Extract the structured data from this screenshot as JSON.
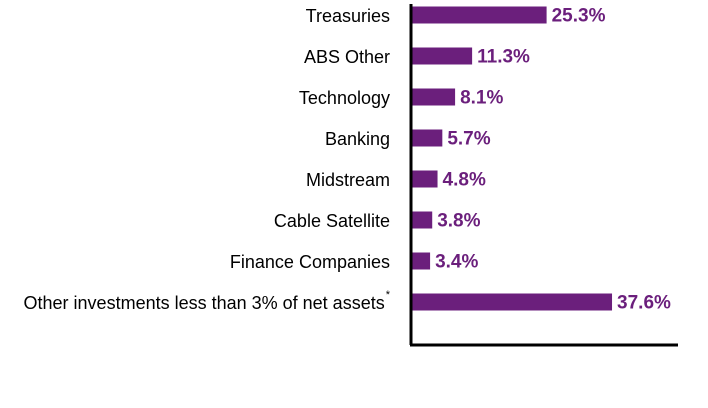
{
  "chart_data": {
    "type": "bar",
    "orientation": "horizontal",
    "categories": [
      "Treasuries",
      "ABS Other",
      "Technology",
      "Banking",
      "Midstream",
      "Cable Satellite",
      "Finance Companies",
      "Other investments less than 3% of net assets"
    ],
    "footnote_markers": [
      "",
      "",
      "",
      "",
      "",
      "",
      "",
      "*"
    ],
    "values": [
      25.3,
      11.3,
      8.1,
      5.7,
      4.8,
      3.8,
      3.4,
      37.6
    ],
    "value_labels": [
      "25.3%",
      "11.3%",
      "8.1%",
      "5.7%",
      "4.8%",
      "3.8%",
      "3.4%",
      "37.6%"
    ],
    "title": "",
    "xlabel": "",
    "ylabel": "",
    "xlim": [
      0,
      50
    ],
    "grid": false,
    "legend": "none",
    "colors": {
      "bar": "#6b1f7c",
      "value_label": "#6b1f7c",
      "axis": "#000000"
    }
  }
}
